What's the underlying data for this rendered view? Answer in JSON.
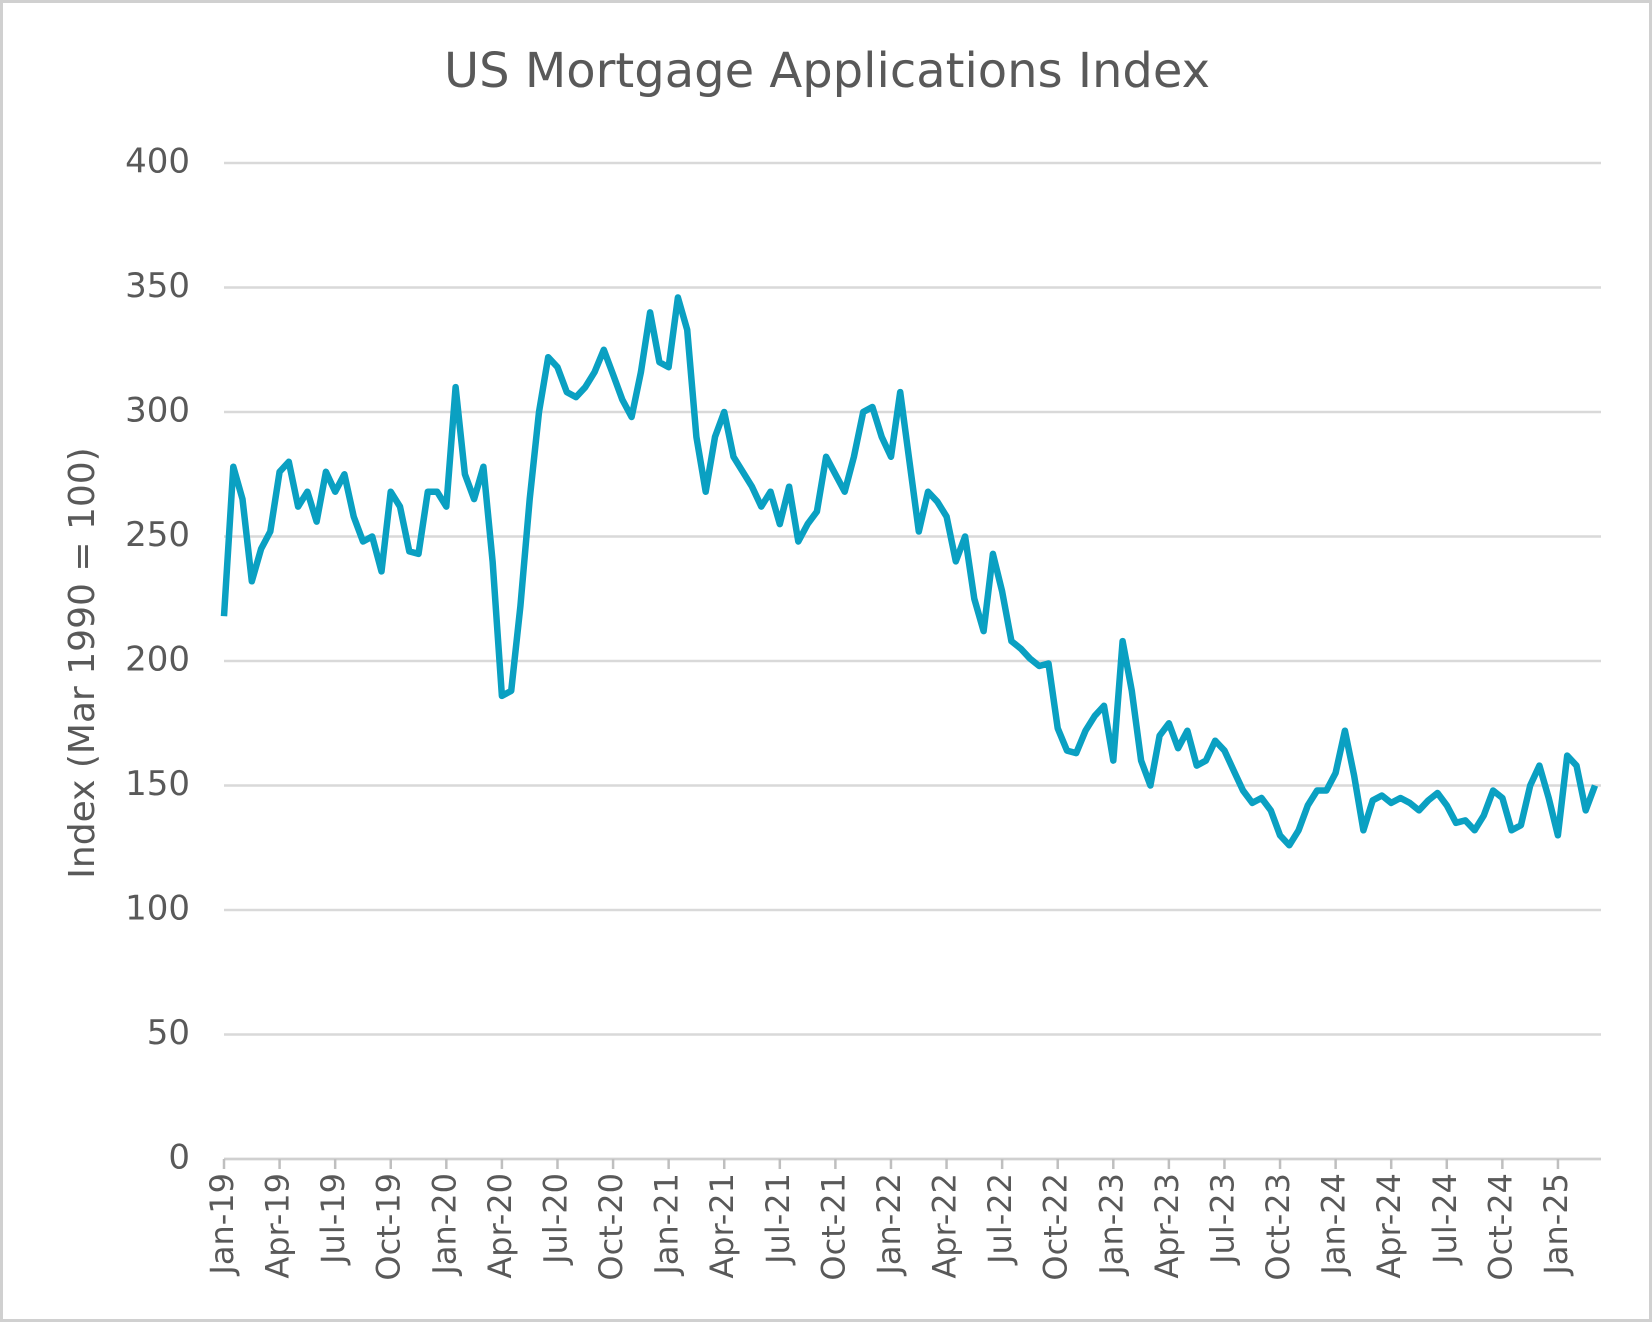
{
  "chart_data": {
    "type": "line",
    "title": "US Mortgage Applications Index",
    "y_label": "Index (Mar 1990 = 100)",
    "categories": [
      "Jan-19",
      null,
      null,
      null,
      null,
      null,
      "Apr-19",
      null,
      null,
      null,
      null,
      null,
      "Jul-19",
      null,
      null,
      null,
      null,
      null,
      "Oct-19",
      null,
      null,
      null,
      null,
      null,
      "Jan-20",
      null,
      null,
      null,
      null,
      null,
      "Apr-20",
      null,
      null,
      null,
      null,
      null,
      "Jul-20",
      null,
      null,
      null,
      null,
      null,
      "Oct-20",
      null,
      null,
      null,
      null,
      null,
      "Jan-21",
      null,
      null,
      null,
      null,
      null,
      "Apr-21",
      null,
      null,
      null,
      null,
      null,
      "Jul-21",
      null,
      null,
      null,
      null,
      null,
      "Oct-21",
      null,
      null,
      null,
      null,
      null,
      "Jan-22",
      null,
      null,
      null,
      null,
      null,
      "Apr-22",
      null,
      null,
      null,
      null,
      null,
      "Jul-22",
      null,
      null,
      null,
      null,
      null,
      "Oct-22",
      null,
      null,
      null,
      null,
      null,
      "Jan-23",
      null,
      null,
      null,
      null,
      null,
      "Apr-23",
      null,
      null,
      null,
      null,
      null,
      "Jul-23",
      null,
      null,
      null,
      null,
      null,
      "Oct-23",
      null,
      null,
      null,
      null,
      null,
      "Jan-24",
      null,
      null,
      null,
      null,
      null,
      "Apr-24",
      null,
      null,
      null,
      null,
      null,
      "Jul-24",
      null,
      null,
      null,
      null,
      null,
      "Oct-24",
      null,
      null,
      null,
      null,
      null,
      "Jan-25",
      null,
      null,
      null,
      null
    ],
    "series": [
      {
        "name": "US Mortgage Applications Index",
        "color": "#0aa0c2",
        "values": [
          218,
          278,
          265,
          232,
          245,
          252,
          276,
          280,
          262,
          268,
          256,
          276,
          268,
          275,
          258,
          248,
          250,
          236,
          268,
          262,
          244,
          243,
          268,
          268,
          262,
          310,
          275,
          265,
          278,
          240,
          186,
          188,
          222,
          265,
          300,
          322,
          318,
          308,
          306,
          310,
          316,
          325,
          315,
          305,
          298,
          316,
          340,
          320,
          318,
          346,
          333,
          290,
          268,
          290,
          300,
          282,
          276,
          270,
          262,
          268,
          255,
          270,
          248,
          255,
          260,
          282,
          275,
          268,
          282,
          300,
          302,
          290,
          282,
          308,
          280,
          252,
          268,
          264,
          258,
          240,
          250,
          225,
          212,
          243,
          228,
          208,
          205,
          201,
          198,
          199,
          173,
          164,
          163,
          172,
          178,
          182,
          160,
          208,
          188,
          160,
          150,
          170,
          175,
          165,
          172,
          158,
          160,
          168,
          164,
          156,
          148,
          143,
          145,
          140,
          130,
          126,
          132,
          142,
          148,
          148,
          155,
          172,
          154,
          132,
          144,
          146,
          143,
          145,
          143,
          140,
          144,
          147,
          142,
          135,
          136,
          132,
          138,
          148,
          145,
          132,
          134,
          150,
          158,
          145,
          130,
          162,
          158,
          140,
          150
        ]
      }
    ],
    "ylim": [
      0,
      400
    ],
    "yticks": [
      0,
      50,
      100,
      150,
      200,
      250,
      300,
      350,
      400
    ],
    "grid": true
  }
}
